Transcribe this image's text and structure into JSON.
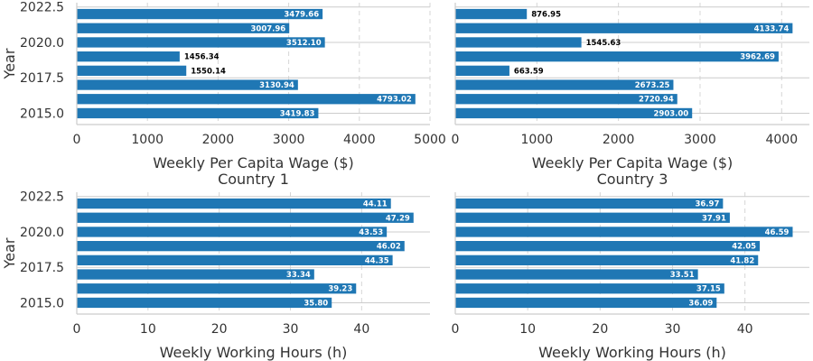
{
  "chart_data": [
    {
      "type": "bar",
      "orientation": "horizontal",
      "title": "",
      "xlabel": "Weekly Per Capita Wage ($)",
      "ylabel": "Year",
      "subtitle": "Country 1",
      "y": [
        2015,
        2016,
        2017,
        2018,
        2019,
        2020,
        2021,
        2022
      ],
      "values": [
        3419.83,
        4793.02,
        3130.94,
        1550.14,
        1456.34,
        3512.1,
        3007.96,
        3479.66
      ],
      "value_labels": [
        "3419.83",
        "4793.02",
        "3130.94",
        "1550.14",
        "1456.34",
        "3512.10",
        "3007.96",
        "3479.66"
      ],
      "xlim": [
        0,
        5000
      ],
      "xticks": [
        0,
        1000,
        2000,
        3000,
        4000,
        5000
      ],
      "ylim": [
        2014.2,
        2022.8
      ],
      "yticks": [
        2015.0,
        2017.5,
        2020.0,
        2022.5
      ],
      "ytick_labels": [
        "2015.0",
        "2017.5",
        "2020.0",
        "2022.5"
      ],
      "grid": "both",
      "bar_color": "#1f77b4"
    },
    {
      "type": "bar",
      "orientation": "horizontal",
      "title": "",
      "xlabel": "Weekly Per Capita Wage ($)",
      "ylabel": "",
      "subtitle": "Country 3",
      "y": [
        2015,
        2016,
        2017,
        2018,
        2019,
        2020,
        2021,
        2022
      ],
      "values": [
        2903.0,
        2720.94,
        2673.25,
        663.59,
        3962.69,
        1545.63,
        4133.74,
        876.95
      ],
      "value_labels": [
        "2903.00",
        "2720.94",
        "2673.25",
        "663.59",
        "3962.69",
        "1545.63",
        "4133.74",
        "876.95"
      ],
      "xlim": [
        0,
        4340
      ],
      "xticks": [
        0,
        1000,
        2000,
        3000,
        4000
      ],
      "ylim": [
        2014.2,
        2022.8
      ],
      "yticks": [
        2015.0,
        2017.5,
        2020.0,
        2022.5
      ],
      "ytick_labels": [
        "",
        "",
        "",
        ""
      ],
      "grid": "both",
      "bar_color": "#1f77b4"
    },
    {
      "type": "bar",
      "orientation": "horizontal",
      "title": "",
      "xlabel": "Weekly Working Hours (h)",
      "ylabel": "Year",
      "subtitle": "",
      "y": [
        2015,
        2016,
        2017,
        2018,
        2019,
        2020,
        2021,
        2022
      ],
      "values": [
        35.8,
        39.23,
        33.34,
        44.35,
        46.02,
        43.53,
        47.29,
        44.11
      ],
      "value_labels": [
        "35.80",
        "39.23",
        "33.34",
        "44.35",
        "46.02",
        "43.53",
        "47.29",
        "44.11"
      ],
      "xlim": [
        0,
        49.6
      ],
      "xticks": [
        0,
        10,
        20,
        30,
        40
      ],
      "ylim": [
        2014.2,
        2022.8
      ],
      "yticks": [
        2015.0,
        2017.5,
        2020.0,
        2022.5
      ],
      "ytick_labels": [
        "2015.0",
        "2017.5",
        "2020.0",
        "2022.5"
      ],
      "grid": "both",
      "bar_color": "#1f77b4"
    },
    {
      "type": "bar",
      "orientation": "horizontal",
      "title": "",
      "xlabel": "Weekly Working Hours (h)",
      "ylabel": "",
      "subtitle": "",
      "y": [
        2015,
        2016,
        2017,
        2018,
        2019,
        2020,
        2021,
        2022
      ],
      "values": [
        36.09,
        37.15,
        33.51,
        41.82,
        42.05,
        46.59,
        37.91,
        36.97
      ],
      "value_labels": [
        "36.09",
        "37.15",
        "33.51",
        "41.82",
        "42.05",
        "46.59",
        "37.91",
        "36.97"
      ],
      "xlim": [
        0,
        48.9
      ],
      "xticks": [
        0,
        10,
        20,
        30,
        40
      ],
      "ylim": [
        2014.2,
        2022.8
      ],
      "yticks": [
        2015.0,
        2017.5,
        2020.0,
        2022.5
      ],
      "ytick_labels": [
        "",
        "",
        "",
        ""
      ],
      "grid": "both",
      "bar_color": "#1f77b4"
    }
  ]
}
